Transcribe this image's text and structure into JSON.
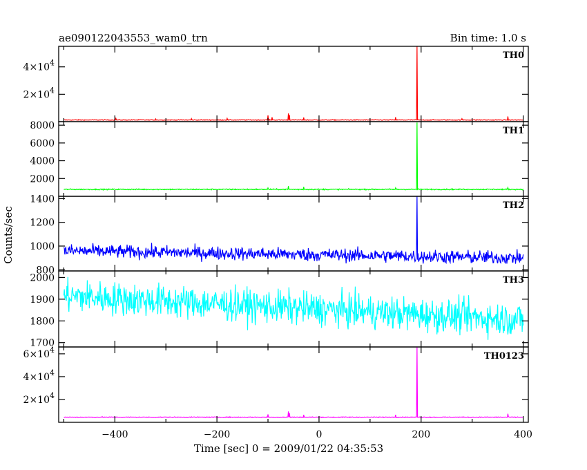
{
  "header": {
    "title": "ae090122043553_wam0_trn",
    "bin_time": "Bin time: 1.0 s"
  },
  "chart_data": {
    "type": "line",
    "title": "ae090122043553_wam0_trn",
    "xlabel": "Time [sec] 0 = 2009/01/22 04:35:53",
    "ylabel": "Counts/sec",
    "xlim": [
      -510,
      410
    ],
    "x_ticks": [
      -400,
      -200,
      0,
      200,
      400
    ],
    "x_tick_labels": [
      "−400",
      "−200",
      "0",
      "200",
      "400"
    ],
    "grid": false,
    "panels": [
      {
        "name": "TH0",
        "color": "#ff0000",
        "ylim": [
          0,
          55000
        ],
        "y_ticks": [
          20000,
          40000
        ],
        "y_tick_labels": [
          {
            "mant": "2×10",
            "exp": "4"
          },
          {
            "mant": "4×10",
            "exp": "4"
          }
        ],
        "series": {
          "baseline": 1200,
          "noise": 250,
          "peak": {
            "x": 192,
            "y": 55000
          },
          "spikes": [
            {
              "x": -398,
              "y": 2400
            },
            {
              "x": -320,
              "y": 2000
            },
            {
              "x": -250,
              "y": 2200
            },
            {
              "x": -180,
              "y": 2400
            },
            {
              "x": -100,
              "y": 4600
            },
            {
              "x": -92,
              "y": 3200
            },
            {
              "x": -60,
              "y": 6000
            },
            {
              "x": -58,
              "y": 4800
            },
            {
              "x": -30,
              "y": 3000
            },
            {
              "x": 150,
              "y": 3200
            },
            {
              "x": 280,
              "y": 2200
            },
            {
              "x": 370,
              "y": 3800
            }
          ]
        }
      },
      {
        "name": "TH1",
        "color": "#00ff00",
        "ylim": [
          0,
          8400
        ],
        "y_ticks": [
          2000,
          4000,
          6000,
          8000
        ],
        "y_tick_labels": [
          "2000",
          "4000",
          "6000",
          "8000"
        ],
        "series": {
          "baseline": 780,
          "noise": 60,
          "peak": {
            "x": 192,
            "y": 8300
          },
          "spikes": [
            {
              "x": -100,
              "y": 950
            },
            {
              "x": -60,
              "y": 1150
            },
            {
              "x": -30,
              "y": 1050
            },
            {
              "x": 150,
              "y": 950
            },
            {
              "x": 370,
              "y": 980
            }
          ]
        }
      },
      {
        "name": "TH2",
        "color": "#0000ff",
        "ylim": [
          790,
          1420
        ],
        "y_ticks": [
          800,
          1000,
          1200,
          1400
        ],
        "y_tick_labels": [
          "800",
          "1000",
          "1200",
          "1400"
        ],
        "series": {
          "start_level": 960,
          "end_level": 900,
          "noise": 55,
          "peak": {
            "x": 192,
            "y": 1420
          },
          "spikes": []
        }
      },
      {
        "name": "TH3",
        "color": "#00ffff",
        "ylim": [
          1680,
          2030
        ],
        "y_ticks": [
          1700,
          1800,
          1900,
          2000
        ],
        "y_tick_labels": [
          "1700",
          "1800",
          "1900",
          "2000"
        ],
        "series": {
          "start_level": 1915,
          "end_level": 1805,
          "noise": 75,
          "peak": null,
          "spikes": []
        }
      },
      {
        "name": "TH0123",
        "color": "#ff00ff",
        "ylim": [
          0,
          66000
        ],
        "y_ticks": [
          20000,
          40000,
          60000
        ],
        "y_tick_labels": [
          {
            "mant": "2×10",
            "exp": "4"
          },
          {
            "mant": "4×10",
            "exp": "4"
          },
          {
            "mant": "6×10",
            "exp": "4"
          }
        ],
        "series": {
          "baseline": 4500,
          "noise": 300,
          "peak": {
            "x": 192,
            "y": 66000
          },
          "spikes": [
            {
              "x": -100,
              "y": 7000
            },
            {
              "x": -60,
              "y": 9500
            },
            {
              "x": -58,
              "y": 8000
            },
            {
              "x": -30,
              "y": 6500
            },
            {
              "x": 150,
              "y": 6500
            },
            {
              "x": 370,
              "y": 7500
            }
          ]
        }
      }
    ]
  }
}
